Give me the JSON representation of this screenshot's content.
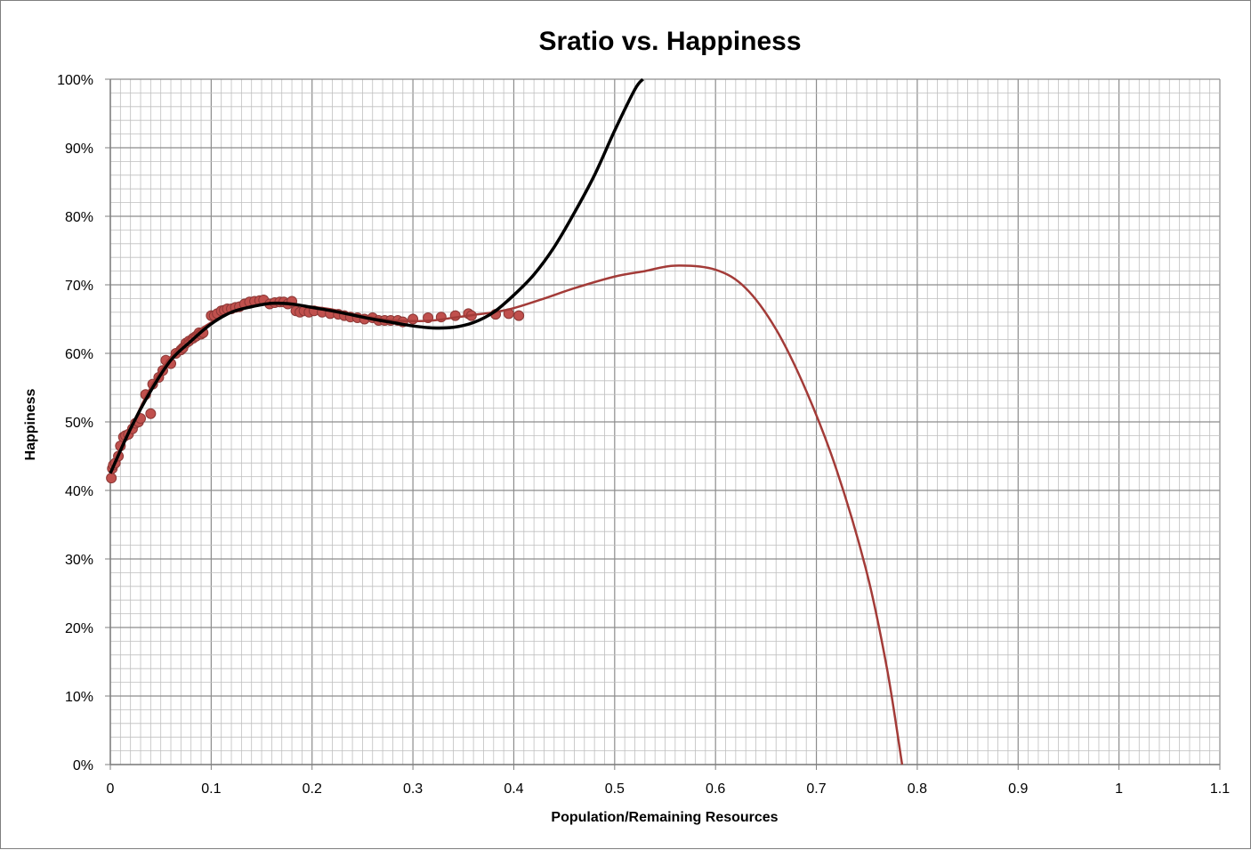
{
  "chart_data": {
    "type": "scatter",
    "title": "Sratio vs. Happiness",
    "xlabel": "Population/Remaining Resources",
    "ylabel": "Happiness",
    "xlim": [
      0,
      1.1
    ],
    "ylim": [
      0,
      1
    ],
    "x_ticks": [
      "0",
      "0.1",
      "0.2",
      "0.3",
      "0.4",
      "0.5",
      "0.6",
      "0.7",
      "0.8",
      "0.9",
      "1",
      "1.1"
    ],
    "y_ticks": [
      "0%",
      "10%",
      "20%",
      "30%",
      "40%",
      "50%",
      "60%",
      "70%",
      "80%",
      "90%",
      "100%"
    ],
    "grid": true,
    "legend": "none",
    "colors": {
      "points": "#c0504d",
      "point_edge": "#8c3836",
      "trend_red": "#a33b38",
      "trend_black": "#000000",
      "grid": "#bfbfbf",
      "grid_major": "#8c8c8c"
    },
    "series": [
      {
        "type": "scatter",
        "x": [
          0.001,
          0.002,
          0.003,
          0.005,
          0.008,
          0.01,
          0.013,
          0.015,
          0.018,
          0.022,
          0.025,
          0.028,
          0.03,
          0.035,
          0.04,
          0.042,
          0.048,
          0.052,
          0.055,
          0.06,
          0.065,
          0.07,
          0.072,
          0.075,
          0.078,
          0.082,
          0.085,
          0.088,
          0.09,
          0.092,
          0.1,
          0.103,
          0.106,
          0.11,
          0.113,
          0.116,
          0.12,
          0.124,
          0.128,
          0.133,
          0.138,
          0.143,
          0.148,
          0.152,
          0.158,
          0.163,
          0.168,
          0.172,
          0.176,
          0.18,
          0.184,
          0.188,
          0.192,
          0.197,
          0.202,
          0.21,
          0.218,
          0.226,
          0.232,
          0.238,
          0.245,
          0.252,
          0.26,
          0.266,
          0.272,
          0.278,
          0.285,
          0.29,
          0.3,
          0.315,
          0.328,
          0.342,
          0.355,
          0.358,
          0.382,
          0.395,
          0.405
        ],
        "y": [
          0.418,
          0.432,
          0.437,
          0.44,
          0.45,
          0.465,
          0.478,
          0.48,
          0.482,
          0.49,
          0.498,
          0.5,
          0.505,
          0.54,
          0.512,
          0.555,
          0.565,
          0.575,
          0.59,
          0.585,
          0.6,
          0.605,
          0.608,
          0.615,
          0.618,
          0.622,
          0.625,
          0.63,
          0.628,
          0.63,
          0.655,
          0.655,
          0.658,
          0.662,
          0.663,
          0.665,
          0.665,
          0.667,
          0.668,
          0.672,
          0.675,
          0.676,
          0.677,
          0.678,
          0.672,
          0.674,
          0.675,
          0.675,
          0.672,
          0.676,
          0.662,
          0.66,
          0.662,
          0.66,
          0.662,
          0.66,
          0.658,
          0.657,
          0.655,
          0.653,
          0.652,
          0.65,
          0.652,
          0.648,
          0.648,
          0.648,
          0.648,
          0.646,
          0.65,
          0.652,
          0.653,
          0.655,
          0.658,
          0.655,
          0.657,
          0.658,
          0.655
        ]
      },
      {
        "type": "trendline",
        "name": "",
        "x": [
          0,
          0.02,
          0.04,
          0.06,
          0.08,
          0.1,
          0.12,
          0.14,
          0.16,
          0.18,
          0.2,
          0.22,
          0.24,
          0.26,
          0.28,
          0.3,
          0.32,
          0.34,
          0.36,
          0.38,
          0.4,
          0.43,
          0.46,
          0.5,
          0.53,
          0.56,
          0.6,
          0.63,
          0.66,
          0.69,
          0.72,
          0.75,
          0.77,
          0.785
        ],
        "y": [
          0.425,
          0.49,
          0.55,
          0.595,
          0.625,
          0.645,
          0.66,
          0.668,
          0.672,
          0.671,
          0.668,
          0.664,
          0.657,
          0.652,
          0.648,
          0.647,
          0.648,
          0.652,
          0.656,
          0.66,
          0.666,
          0.68,
          0.695,
          0.712,
          0.72,
          0.728,
          0.722,
          0.695,
          0.635,
          0.545,
          0.43,
          0.28,
          0.14,
          0.0
        ]
      },
      {
        "type": "trendline",
        "name": "",
        "x": [
          0,
          0.02,
          0.04,
          0.06,
          0.08,
          0.1,
          0.12,
          0.14,
          0.16,
          0.18,
          0.2,
          0.22,
          0.24,
          0.26,
          0.28,
          0.3,
          0.32,
          0.34,
          0.36,
          0.38,
          0.4,
          0.42,
          0.44,
          0.46,
          0.48,
          0.5,
          0.52,
          0.528
        ],
        "y": [
          0.425,
          0.49,
          0.545,
          0.59,
          0.618,
          0.643,
          0.66,
          0.668,
          0.673,
          0.672,
          0.667,
          0.662,
          0.656,
          0.65,
          0.645,
          0.64,
          0.637,
          0.638,
          0.645,
          0.66,
          0.685,
          0.715,
          0.755,
          0.805,
          0.86,
          0.925,
          0.985,
          1.0
        ]
      }
    ]
  }
}
